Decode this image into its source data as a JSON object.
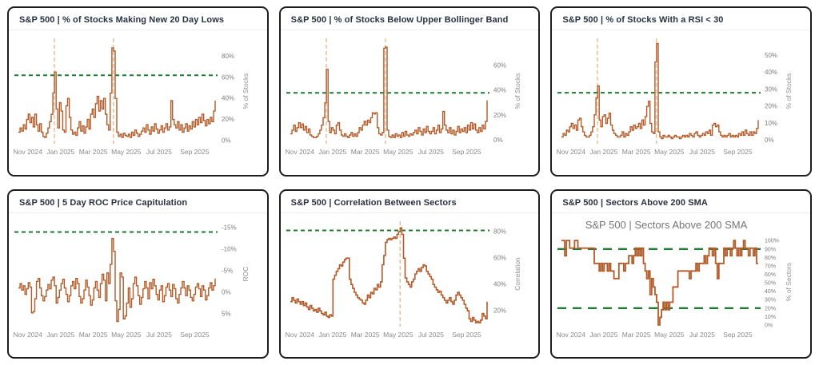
{
  "colors": {
    "series": "#b25b28",
    "threshold": "#1e7b32",
    "vertical_marker": "#eebd93",
    "tick_text": "#7d7d7d",
    "axis_title_text": "#8f8f8f",
    "panel_title_text": "#2b3140",
    "panel_border": "#1d1d1d"
  },
  "x_axis": {
    "labels": [
      "Nov 2024",
      "Jan 2025",
      "Mar 2025",
      "May 2025",
      "Jul 2025",
      "Sep 2025"
    ],
    "fracs": [
      0.048,
      0.215,
      0.381,
      0.548,
      0.715,
      0.896
    ]
  },
  "chart_data": [
    {
      "type": "line",
      "title": "S&P 500 | % of Stocks Making New 20 Day Lows",
      "ylabel": "% of Stocks",
      "y_ticks": [
        0,
        20,
        40,
        60,
        80
      ],
      "tick_suffix": "%",
      "ylim": [
        -3,
        97
      ],
      "thresholds": [
        62
      ],
      "vertical_markers": [
        0.183,
        0.483
      ],
      "dash": "short",
      "stroke": 1.4,
      "tick_font": 8,
      "values": [
        8,
        12,
        9,
        15,
        11,
        20,
        25,
        17,
        22,
        13,
        25,
        15,
        9,
        16,
        8,
        4,
        3,
        7,
        12,
        18,
        25,
        45,
        65,
        30,
        12,
        36,
        28,
        10,
        8,
        33,
        40,
        22,
        10,
        6,
        8,
        5,
        12,
        18,
        9,
        14,
        7,
        13,
        20,
        11,
        25,
        30,
        22,
        35,
        42,
        28,
        38,
        30,
        40,
        25,
        15,
        10,
        45,
        88,
        85,
        40,
        8,
        4,
        6,
        3,
        7,
        5,
        4,
        6,
        3,
        8,
        5,
        10,
        7,
        4,
        6,
        9,
        12,
        8,
        15,
        10,
        6,
        13,
        9,
        16,
        11,
        7,
        10,
        14,
        8,
        12,
        16,
        10,
        13,
        38,
        20,
        15,
        12,
        18,
        10,
        15,
        8,
        12,
        16,
        9,
        14,
        11,
        18,
        13,
        20,
        15,
        22,
        17,
        25,
        19,
        14,
        20,
        16,
        22,
        18,
        28,
        38
      ]
    },
    {
      "type": "line",
      "title": "S&P 500 | % of Stocks Below Upper Bollinger Band",
      "ylabel": "% of Stocks",
      "y_ticks": [
        0,
        20,
        40,
        60
      ],
      "tick_suffix": "%",
      "ylim": [
        -3,
        82
      ],
      "thresholds": [
        38
      ],
      "vertical_markers": [
        0.183,
        0.483
      ],
      "dash": "short",
      "stroke": 1.4,
      "tick_font": 8,
      "values": [
        5,
        8,
        12,
        7,
        10,
        14,
        10,
        13,
        8,
        11,
        6,
        9,
        4,
        3,
        2,
        2,
        3,
        5,
        8,
        12,
        18,
        30,
        57,
        15,
        6,
        10,
        8,
        5,
        12,
        14,
        8,
        4,
        3,
        5,
        3,
        2,
        4,
        6,
        3,
        5,
        3,
        6,
        10,
        8,
        12,
        15,
        12,
        16,
        14,
        18,
        22,
        21,
        22,
        10,
        5,
        4,
        6,
        74,
        75,
        8,
        3,
        2,
        4,
        2,
        5,
        3,
        4,
        2,
        6,
        3,
        7,
        4,
        3,
        5,
        4,
        6,
        8,
        5,
        10,
        7,
        4,
        9,
        6,
        11,
        7,
        5,
        7,
        10,
        5,
        8,
        12,
        6,
        9,
        23,
        12,
        8,
        6,
        10,
        5,
        8,
        4,
        7,
        11,
        6,
        9,
        7,
        10,
        6,
        12,
        8,
        14,
        9,
        13,
        8,
        6,
        10,
        7,
        12,
        9,
        15,
        32
      ]
    },
    {
      "type": "line",
      "title": "S&P 500 | % of Stocks With a RSI < 30",
      "ylabel": "% of Stocks",
      "y_ticks": [
        0,
        10,
        20,
        30,
        40,
        50
      ],
      "tick_suffix": "%",
      "ylim": [
        -2,
        60
      ],
      "thresholds": [
        28
      ],
      "vertical_markers": [
        0.183,
        0.483
      ],
      "dash": "short",
      "stroke": 1.4,
      "tick_font": 8,
      "values": [
        2,
        4,
        3,
        6,
        5,
        8,
        10,
        7,
        9,
        6,
        12,
        13,
        8,
        5,
        3,
        2,
        2,
        3,
        5,
        8,
        15,
        25,
        32,
        12,
        8,
        14,
        15,
        10,
        13,
        16,
        9,
        6,
        4,
        3,
        2,
        2,
        3,
        5,
        2,
        4,
        3,
        5,
        8,
        6,
        9,
        7,
        8,
        10,
        7,
        12,
        9,
        14,
        20,
        23,
        10,
        5,
        4,
        46,
        57,
        5,
        2,
        1,
        3,
        2,
        2,
        3,
        2,
        1,
        2,
        3,
        2,
        2,
        1,
        2,
        3,
        2,
        3,
        2,
        4,
        3,
        2,
        4,
        5,
        3,
        2,
        3,
        4,
        3,
        5,
        4,
        6,
        3,
        9,
        10,
        8,
        9,
        5,
        3,
        2,
        3,
        2,
        3,
        4,
        2,
        3,
        2,
        3,
        2,
        4,
        3,
        5,
        3,
        6,
        4,
        3,
        5,
        3,
        5,
        4,
        7,
        12
      ]
    },
    {
      "type": "line",
      "title": "S&P 500 | 5 Day ROC Price Capitulation",
      "ylabel": "ROC",
      "y_ticks": [
        -15,
        -10,
        -5,
        0,
        5
      ],
      "tick_suffix": "%",
      "ylim": [
        8,
        -16.5
      ],
      "thresholds": [
        -14
      ],
      "vertical_markers": [],
      "dash": "short",
      "stroke": 1.4,
      "tick_font": 8,
      "values": [
        -1.0,
        -2.0,
        -0.5,
        -1.5,
        0.5,
        -0.8,
        -2.2,
        -1.2,
        4.8,
        4.5,
        1.5,
        -2.5,
        -3.2,
        -1.0,
        0.8,
        2.0,
        1.0,
        -0.5,
        -1.8,
        -0.8,
        -2.8,
        -3.5,
        -1.5,
        2.5,
        1.2,
        -0.5,
        -2.0,
        -3.0,
        -1.0,
        0.5,
        2.2,
        0.8,
        -1.5,
        -2.5,
        -0.8,
        -3.2,
        -2.0,
        1.0,
        2.5,
        1.5,
        -0.5,
        -2.8,
        -1.2,
        0.8,
        3.0,
        1.8,
        -1.0,
        -2.5,
        -0.5,
        1.2,
        -2.0,
        -4.2,
        -2.8,
        2.0,
        -4.5,
        -2.0,
        -6.5,
        -12.5,
        -9.5,
        2.0,
        6.8,
        4.0,
        -4.5,
        -3.5,
        6.2,
        5.5,
        2.5,
        -1.0,
        3.5,
        1.5,
        -2.0,
        -3.5,
        -1.5,
        0.8,
        2.8,
        1.2,
        -0.8,
        -2.5,
        -1.0,
        1.5,
        -2.2,
        -0.8,
        -3.0,
        -1.5,
        0.5,
        1.8,
        -0.5,
        -1.5,
        2.2,
        0.8,
        -1.2,
        -2.0,
        -0.5,
        1.0,
        -1.8,
        -0.8,
        1.5,
        2.5,
        0.5,
        -1.0,
        -2.5,
        -1.0,
        0.8,
        -1.5,
        -0.5,
        1.2,
        2.0,
        0.5,
        -1.2,
        -2.0,
        -0.8,
        1.0,
        -1.5,
        -0.5,
        1.8,
        0.8,
        -1.0,
        -2.2,
        -0.5,
        -1.5,
        -3.2
      ]
    },
    {
      "type": "line",
      "title": "S&P 500 | Correlation Between Sectors",
      "ylabel": "Correlation",
      "y_ticks": [
        20,
        40,
        60,
        80
      ],
      "tick_suffix": "%",
      "ylim": [
        8,
        88
      ],
      "thresholds": [
        81
      ],
      "vertical_markers": [
        0.558
      ],
      "dash": "short",
      "stroke": 1.6,
      "tick_font": 8,
      "values": [
        27,
        30,
        28,
        26,
        29,
        27,
        25,
        27,
        24,
        26,
        23,
        21,
        24,
        22,
        20,
        21,
        19,
        22,
        20,
        18,
        17,
        19,
        16,
        15,
        17,
        16,
        44,
        47,
        50,
        52,
        55,
        54,
        57,
        59,
        60,
        60,
        44,
        40,
        37,
        34,
        32,
        30,
        29,
        28,
        26,
        25,
        28,
        32,
        30,
        34,
        33,
        37,
        36,
        40,
        38,
        42,
        55,
        62,
        72,
        74,
        75,
        74,
        75,
        76,
        75,
        78,
        80,
        83,
        78,
        60,
        45,
        42,
        40,
        38,
        42,
        44,
        48,
        50,
        52,
        50,
        53,
        55,
        54,
        50,
        48,
        46,
        44,
        40,
        38,
        36,
        34,
        35,
        32,
        30,
        28,
        26,
        28,
        30,
        27,
        25,
        28,
        32,
        34,
        32,
        30,
        28,
        25,
        22,
        20,
        14,
        12,
        15,
        13,
        11,
        12,
        11,
        13,
        18,
        16,
        14,
        27
      ]
    },
    {
      "type": "line",
      "title": "S&P 500 | Sectors Above 200 SMA",
      "inner_title": "S&P 500 | Sectors Above 200 SMA",
      "ylabel": "% of Sectors",
      "y_ticks": [
        0,
        10,
        20,
        30,
        40,
        50,
        60,
        70,
        80,
        90,
        100
      ],
      "tick_suffix": "%",
      "ylim": [
        -2,
        104
      ],
      "thresholds": [
        90,
        20
      ],
      "vertical_markers": [],
      "dash": "long",
      "stroke": 1.8,
      "tick_font": 7,
      "values": [
        100,
        100,
        82,
        100,
        100,
        91,
        91,
        91,
        100,
        100,
        91,
        91,
        91,
        91,
        91,
        91,
        91,
        91,
        91,
        91,
        73,
        73,
        73,
        64,
        73,
        64,
        73,
        73,
        64,
        73,
        64,
        64,
        55,
        55,
        55,
        73,
        73,
        73,
        64,
        73,
        73,
        82,
        82,
        73,
        82,
        91,
        82,
        91,
        82,
        91,
        73,
        64,
        55,
        64,
        36,
        55,
        45,
        36,
        27,
        0,
        9,
        18,
        27,
        18,
        27,
        18,
        27,
        27,
        45,
        45,
        45,
        64,
        64,
        64,
        64,
        64,
        64,
        64,
        55,
        64,
        64,
        64,
        73,
        64,
        73,
        73,
        73,
        82,
        73,
        82,
        91,
        91,
        82,
        91,
        73,
        55,
        73,
        73,
        73,
        91,
        82,
        91,
        91,
        82,
        91,
        100,
        91,
        82,
        91,
        82,
        91,
        100,
        91,
        91,
        82,
        91,
        91,
        82,
        91,
        73,
        73
      ]
    }
  ]
}
